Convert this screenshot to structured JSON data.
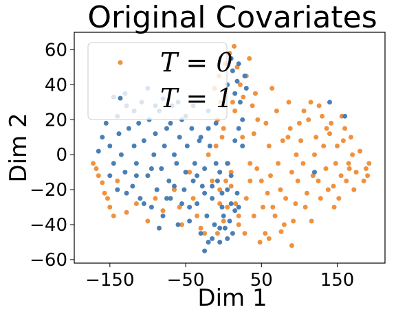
{
  "chart_data": {
    "type": "scatter",
    "title": "Original Covariates",
    "xlabel": "Dim 1",
    "ylabel": "Dim 2",
    "xlim": [
      -197,
      213
    ],
    "ylim": [
      -62,
      70
    ],
    "xticks": [
      -150,
      -50,
      50,
      150
    ],
    "xtick_labels": [
      "−150",
      "−50",
      "50",
      "150"
    ],
    "yticks": [
      -60,
      -40,
      -20,
      0,
      20,
      40,
      60
    ],
    "ytick_labels": [
      "−60",
      "−40",
      "−20",
      "0",
      "20",
      "40",
      "60"
    ],
    "grid": false,
    "legend": {
      "placement": "upper-left",
      "entries": [
        "T = 0",
        "T = 1"
      ]
    },
    "series": [
      {
        "name": "T = 0",
        "color": "#f0913e",
        "points": [
          [
            -172,
            -5
          ],
          [
            -168,
            -8
          ],
          [
            -165,
            -12
          ],
          [
            -160,
            -16
          ],
          [
            -157,
            -22
          ],
          [
            -153,
            -25
          ],
          [
            -150,
            -30
          ],
          [
            -145,
            -35
          ],
          [
            -140,
            -15
          ],
          [
            -128,
            -33
          ],
          [
            -115,
            -28
          ],
          [
            -100,
            -38
          ],
          [
            -90,
            -25
          ],
          [
            -80,
            -32
          ],
          [
            -65,
            -20
          ],
          [
            -55,
            -40
          ],
          [
            -45,
            -10
          ],
          [
            -35,
            -35
          ],
          [
            -25,
            -45
          ],
          [
            -20,
            0
          ],
          [
            -15,
            -15
          ],
          [
            -10,
            5
          ],
          [
            -5,
            -20
          ],
          [
            0,
            15
          ],
          [
            5,
            -30
          ],
          [
            10,
            -10
          ],
          [
            15,
            25
          ],
          [
            20,
            -40
          ],
          [
            25,
            10
          ],
          [
            30,
            -25
          ],
          [
            35,
            -5
          ],
          [
            40,
            -35
          ],
          [
            45,
            20
          ],
          [
            50,
            -15
          ],
          [
            55,
            -45
          ],
          [
            60,
            5
          ],
          [
            65,
            -30
          ],
          [
            70,
            25
          ],
          [
            75,
            -20
          ],
          [
            80,
            -40
          ],
          [
            85,
            10
          ],
          [
            90,
            -10
          ],
          [
            95,
            -28
          ],
          [
            100,
            18
          ],
          [
            105,
            -5
          ],
          [
            110,
            -22
          ],
          [
            115,
            30
          ],
          [
            120,
            0
          ],
          [
            125,
            -15
          ],
          [
            130,
            22
          ],
          [
            135,
            -8
          ],
          [
            140,
            12
          ],
          [
            145,
            -18
          ],
          [
            150,
            5
          ],
          [
            155,
            -12
          ],
          [
            160,
            15
          ],
          [
            165,
            -5
          ],
          [
            170,
            0
          ],
          [
            175,
            -10
          ],
          [
            180,
            2
          ],
          [
            185,
            -15
          ],
          [
            188,
            -8
          ],
          [
            190,
            -12
          ],
          [
            192,
            -5
          ],
          [
            -12,
            38
          ],
          [
            -6,
            45
          ],
          [
            2,
            52
          ],
          [
            8,
            58
          ],
          [
            14,
            62
          ],
          [
            18,
            50
          ],
          [
            22,
            40
          ],
          [
            26,
            33
          ],
          [
            30,
            45
          ],
          [
            34,
            55
          ],
          [
            38,
            28
          ],
          [
            42,
            35
          ],
          [
            12,
            30
          ],
          [
            -4,
            30
          ],
          [
            -8,
            20
          ],
          [
            -2,
            10
          ],
          [
            6,
            -5
          ],
          [
            10,
            -18
          ],
          [
            16,
            -28
          ],
          [
            20,
            -35
          ],
          [
            28,
            -45
          ],
          [
            35,
            -15
          ],
          [
            44,
            -8
          ],
          [
            52,
            -30
          ],
          [
            58,
            -22
          ],
          [
            62,
            -12
          ],
          [
            68,
            -35
          ],
          [
            72,
            -5
          ],
          [
            78,
            8
          ],
          [
            82,
            -25
          ],
          [
            88,
            15
          ],
          [
            92,
            -38
          ],
          [
            98,
            -15
          ],
          [
            102,
            8
          ],
          [
            108,
            -30
          ],
          [
            112,
            20
          ],
          [
            118,
            -12
          ],
          [
            122,
            10
          ],
          [
            128,
            -25
          ],
          [
            132,
            5
          ],
          [
            138,
            -20
          ],
          [
            142,
            18
          ],
          [
            148,
            -5
          ],
          [
            152,
            -25
          ],
          [
            158,
            8
          ],
          [
            162,
            -15
          ],
          [
            168,
            10
          ],
          [
            172,
            -20
          ],
          [
            -5,
            -28
          ],
          [
            0,
            -38
          ],
          [
            -8,
            -45
          ],
          [
            3,
            -15
          ],
          [
            48,
            -50
          ],
          [
            60,
            -48
          ],
          [
            76,
            -44
          ],
          [
            90,
            -52
          ],
          [
            40,
            12
          ],
          [
            56,
            18
          ],
          [
            64,
            38
          ],
          [
            86,
            30
          ],
          [
            96,
            0
          ],
          [
            106,
            25
          ],
          [
            116,
            -38
          ],
          [
            126,
            28
          ],
          [
            136,
            15
          ],
          [
            146,
            -30
          ],
          [
            156,
            22
          ],
          [
            166,
            -8
          ],
          [
            -30,
            -42
          ],
          [
            -40,
            -25
          ],
          [
            -58,
            -30
          ]
        ]
      },
      {
        "name": "T = 1",
        "color": "#4a7fb5",
        "points": [
          [
            -160,
            10
          ],
          [
            -155,
            18
          ],
          [
            -150,
            5
          ],
          [
            -145,
            -5
          ],
          [
            -140,
            22
          ],
          [
            -138,
            12
          ],
          [
            -135,
            0
          ],
          [
            -130,
            -10
          ],
          [
            -128,
            28
          ],
          [
            -125,
            15
          ],
          [
            -120,
            -18
          ],
          [
            -118,
            5
          ],
          [
            -115,
            -5
          ],
          [
            -112,
            18
          ],
          [
            -110,
            -25
          ],
          [
            -108,
            30
          ],
          [
            -105,
            8
          ],
          [
            -100,
            -12
          ],
          [
            -98,
            20
          ],
          [
            -95,
            -30
          ],
          [
            -92,
            0
          ],
          [
            -90,
            12
          ],
          [
            -88,
            -20
          ],
          [
            -85,
            25
          ],
          [
            -82,
            -8
          ],
          [
            -80,
            -35
          ],
          [
            -78,
            5
          ],
          [
            -75,
            15
          ],
          [
            -72,
            -15
          ],
          [
            -70,
            -25
          ],
          [
            -68,
            28
          ],
          [
            -65,
            0
          ],
          [
            -62,
            -5
          ],
          [
            -60,
            -40
          ],
          [
            -58,
            10
          ],
          [
            -55,
            20
          ],
          [
            -52,
            -20
          ],
          [
            -50,
            -10
          ],
          [
            -48,
            5
          ],
          [
            -45,
            -30
          ],
          [
            -42,
            15
          ],
          [
            -40,
            -15
          ],
          [
            -38,
            -5
          ],
          [
            -35,
            -28
          ],
          [
            -32,
            8
          ],
          [
            -30,
            -45
          ],
          [
            -28,
            -18
          ],
          [
            -25,
            -8
          ],
          [
            -22,
            -35
          ],
          [
            -20,
            -50
          ],
          [
            -18,
            5
          ],
          [
            -15,
            -25
          ],
          [
            -12,
            -40
          ],
          [
            -10,
            -5
          ],
          [
            -8,
            -15
          ],
          [
            -5,
            -50
          ],
          [
            -2,
            -30
          ],
          [
            0,
            -35
          ],
          [
            2,
            -42
          ],
          [
            5,
            -20
          ],
          [
            8,
            -38
          ],
          [
            10,
            -28
          ],
          [
            12,
            -45
          ],
          [
            15,
            -32
          ],
          [
            18,
            -22
          ],
          [
            20,
            -30
          ],
          [
            -25,
            -55
          ],
          [
            -15,
            -48
          ],
          [
            -5,
            -42
          ],
          [
            5,
            -48
          ],
          [
            -145,
            33
          ],
          [
            -130,
            35
          ],
          [
            -118,
            25
          ],
          [
            -100,
            38
          ],
          [
            -80,
            32
          ],
          [
            -60,
            30
          ],
          [
            -40,
            28
          ],
          [
            -20,
            25
          ],
          [
            0,
            28
          ],
          [
            5,
            40
          ],
          [
            10,
            55
          ],
          [
            12,
            48
          ],
          [
            15,
            35
          ],
          [
            18,
            42
          ],
          [
            20,
            52
          ],
          [
            22,
            30
          ],
          [
            25,
            20
          ],
          [
            28,
            45
          ],
          [
            30,
            38
          ],
          [
            20,
            15
          ],
          [
            25,
            5
          ],
          [
            15,
            8
          ],
          [
            -165,
            2
          ],
          [
            -150,
            -12
          ],
          [
            -140,
            -20
          ],
          [
            -128,
            -22
          ],
          [
            -115,
            -12
          ],
          [
            -105,
            -28
          ],
          [
            -95,
            -8
          ],
          [
            -85,
            -42
          ],
          [
            -75,
            -25
          ],
          [
            -65,
            -18
          ],
          [
            -55,
            -28
          ],
          [
            -45,
            -38
          ],
          [
            -35,
            -12
          ],
          [
            -25,
            -22
          ],
          [
            -15,
            -18
          ],
          [
            -5,
            -10
          ],
          [
            5,
            -5
          ],
          [
            10,
            -12
          ],
          [
            -2,
            -22
          ],
          [
            -30,
            10
          ],
          [
            -20,
            15
          ],
          [
            -10,
            18
          ],
          [
            -50,
            22
          ],
          [
            -70,
            18
          ],
          [
            -90,
            28
          ],
          [
            140,
            30
          ],
          [
            160,
            22
          ],
          [
            120,
            -10
          ]
        ]
      }
    ]
  }
}
